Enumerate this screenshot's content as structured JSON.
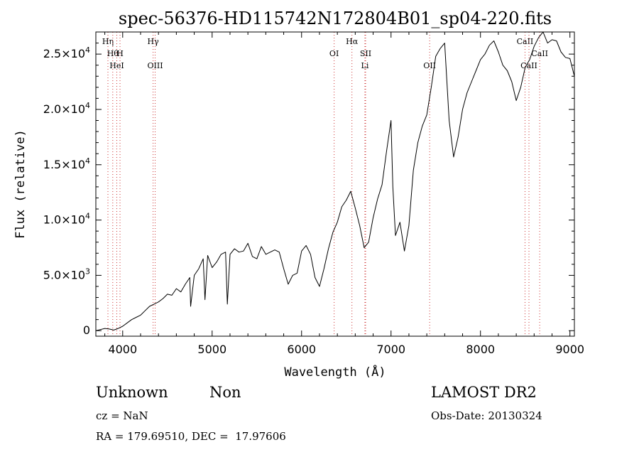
{
  "chart_data": {
    "type": "line",
    "title": "spec-56376-HD115742N172804B01_sp04-220.fits",
    "xlabel": "Wavelength (Å)",
    "ylabel": "Flux (relative)",
    "xlim": [
      3700,
      9050
    ],
    "ylim": [
      -500,
      27000
    ],
    "x_ticks": [
      4000,
      5000,
      6000,
      7000,
      8000,
      9000
    ],
    "y_ticks": [
      {
        "value": 0,
        "mantissa": "0",
        "exp": ""
      },
      {
        "value": 5000,
        "mantissa": "5.0×10",
        "exp": "3"
      },
      {
        "value": 10000,
        "mantissa": "1.0×10",
        "exp": "4"
      },
      {
        "value": 15000,
        "mantissa": "1.5×10",
        "exp": "4"
      },
      {
        "value": 20000,
        "mantissa": "2.0×10",
        "exp": "4"
      },
      {
        "value": 25000,
        "mantissa": "2.5×10",
        "exp": "4"
      }
    ],
    "grid": false,
    "series": [
      {
        "x": [
          3700,
          3750,
          3800,
          3850,
          3900,
          3950,
          4000,
          4050,
          4100,
          4150,
          4200,
          4250,
          4300,
          4350,
          4400,
          4450,
          4500,
          4550,
          4600,
          4650,
          4700,
          4750,
          4760,
          4800,
          4850,
          4900,
          4920,
          4950,
          5000,
          5050,
          5100,
          5150,
          5170,
          5200,
          5250,
          5300,
          5350,
          5400,
          5450,
          5500,
          5550,
          5600,
          5650,
          5700,
          5750,
          5800,
          5850,
          5900,
          5950,
          6000,
          6050,
          6100,
          6150,
          6200,
          6250,
          6300,
          6350,
          6400,
          6450,
          6500,
          6550,
          6600,
          6650,
          6700,
          6750,
          6800,
          6850,
          6900,
          6950,
          7000,
          7020,
          7050,
          7100,
          7150,
          7200,
          7250,
          7300,
          7350,
          7400,
          7450,
          7500,
          7550,
          7600,
          7650,
          7700,
          7750,
          7800,
          7850,
          7900,
          7950,
          8000,
          8050,
          8100,
          8150,
          8200,
          8250,
          8300,
          8350,
          8400,
          8450,
          8500,
          8550,
          8600,
          8650,
          8700,
          8750,
          8800,
          8850,
          8900,
          8950,
          9000,
          9050
        ],
        "y": [
          0,
          100,
          200,
          150,
          50,
          200,
          400,
          700,
          1000,
          1200,
          1400,
          1800,
          2200,
          2400,
          2600,
          2900,
          3300,
          3200,
          3800,
          3500,
          4200,
          4800,
          2200,
          5000,
          5600,
          6500,
          2800,
          6800,
          5700,
          6200,
          6900,
          7100,
          2400,
          6900,
          7400,
          7100,
          7200,
          7900,
          6700,
          6500,
          7600,
          6900,
          7100,
          7300,
          7100,
          5600,
          4200,
          5000,
          5200,
          7200,
          7700,
          6900,
          4800,
          4000,
          5600,
          7400,
          8900,
          9800,
          11200,
          11800,
          12600,
          11100,
          9500,
          7500,
          8000,
          10200,
          11900,
          13200,
          16200,
          19000,
          13000,
          8600,
          9800,
          7200,
          9500,
          14500,
          17000,
          18500,
          19500,
          22000,
          24800,
          25500,
          26000,
          19000,
          15700,
          17500,
          20000,
          21500,
          22500,
          23500,
          24500,
          25000,
          25800,
          26200,
          25200,
          24000,
          23500,
          22500,
          20800,
          22000,
          23800,
          24500,
          25700,
          26500,
          27000,
          26000,
          26300,
          26200,
          25200,
          24700,
          24600,
          23000
        ]
      }
    ],
    "lines": [
      {
        "x": 3835,
        "label": "Hη",
        "row": 0
      },
      {
        "x": 3889,
        "label": "Hθ",
        "row": 1
      },
      {
        "x": 3934,
        "label": "HeI",
        "row": 2
      },
      {
        "x": 3970,
        "label": "H",
        "row": 1
      },
      {
        "x": 4340,
        "label": "Hγ",
        "row": 0
      },
      {
        "x": 4363,
        "label": "OIII",
        "row": 2
      },
      {
        "x": 6364,
        "label": "OI",
        "row": 1
      },
      {
        "x": 6563,
        "label": "Hα",
        "row": 0
      },
      {
        "x": 6716,
        "label": "SII",
        "row": 1
      },
      {
        "x": 6708,
        "label": "Li",
        "row": 2
      },
      {
        "x": 7432,
        "label": "OII",
        "row": 2
      },
      {
        "x": 8498,
        "label": "CaII",
        "row": 0
      },
      {
        "x": 8542,
        "label": "CaII",
        "row": 2
      },
      {
        "x": 8662,
        "label": "CaII",
        "row": 1
      }
    ]
  },
  "info": {
    "class_text": "Unknown",
    "subclass_text": "Non",
    "survey": "LAMOST DR2",
    "cz": "cz = NaN",
    "obs_date": "Obs-Date: 20130324",
    "radec": "RA = 179.69510, DEC =  17.97606"
  },
  "colors": {
    "line": "#000000",
    "marker": "#cc3333",
    "background": "#ffffff"
  }
}
